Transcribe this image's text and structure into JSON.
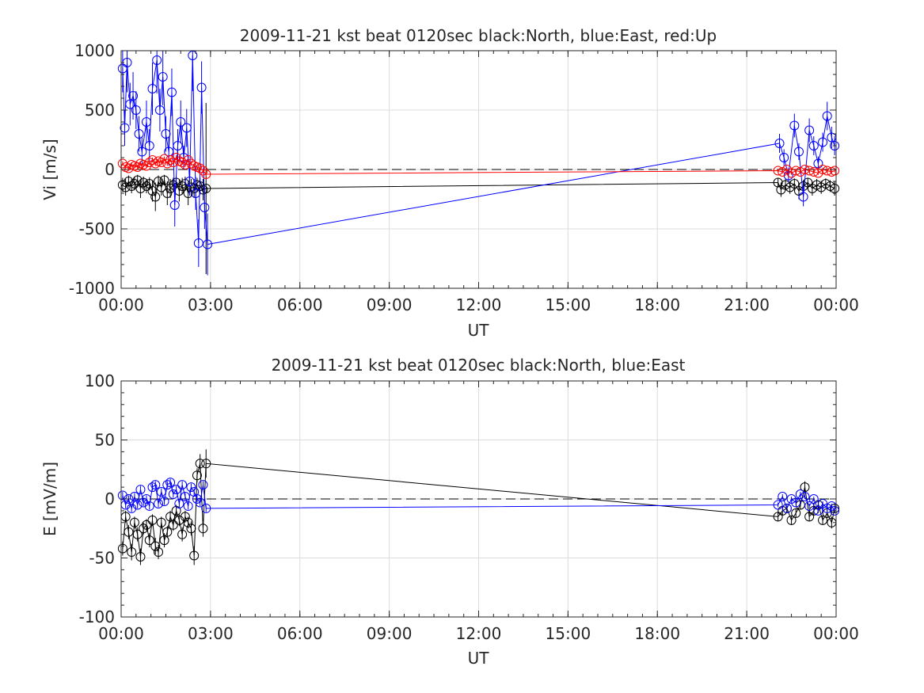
{
  "chart_data": [
    {
      "type": "scatter",
      "title": "2009-11-21 kst beat 0120sec black:North, blue:East, red:Up",
      "xlabel": "UT",
      "ylabel": "Vi [m/s]",
      "xlim": [
        0,
        24
      ],
      "ylim": [
        -1000,
        1000
      ],
      "xticks": [
        0,
        3,
        6,
        9,
        12,
        15,
        18,
        21,
        24
      ],
      "xticklabels": [
        "00:00",
        "03:00",
        "06:00",
        "09:00",
        "12:00",
        "15:00",
        "18:00",
        "21:00",
        "00:00"
      ],
      "yticks": [
        -1000,
        -500,
        0,
        500,
        1000
      ],
      "yticklabels": [
        "-1000",
        "-500",
        "0",
        "500",
        "1000"
      ],
      "grid": true,
      "zero_line": 0,
      "series": [
        {
          "name": "North",
          "color": "#000000",
          "x": [
            0.05,
            0.15,
            0.25,
            0.35,
            0.45,
            0.55,
            0.65,
            0.75,
            0.85,
            0.95,
            1.05,
            1.15,
            1.25,
            1.35,
            1.45,
            1.55,
            1.65,
            1.75,
            1.85,
            1.95,
            2.05,
            2.15,
            2.25,
            2.35,
            2.45,
            2.55,
            2.65,
            2.75,
            2.85,
            22.05,
            22.15,
            22.3,
            22.45,
            22.6,
            22.75,
            22.9,
            23.05,
            23.2,
            23.35,
            23.5,
            23.65,
            23.8,
            23.95
          ],
          "y": [
            -130,
            -150,
            -100,
            -140,
            -120,
            -90,
            -160,
            -110,
            -140,
            -120,
            -180,
            -230,
            -100,
            -150,
            -90,
            -200,
            -160,
            -130,
            -110,
            -180,
            -140,
            -120,
            -200,
            -150,
            -160,
            -130,
            -140,
            -170,
            -160,
            -110,
            -170,
            -130,
            -150,
            -120,
            -180,
            -140,
            -110,
            -160,
            -130,
            -150,
            -120,
            -140,
            -160
          ],
          "err": [
            60,
            70,
            50,
            60,
            55,
            45,
            80,
            50,
            60,
            55,
            90,
            120,
            50,
            70,
            45,
            100,
            80,
            60,
            50,
            90,
            70,
            60,
            100,
            70,
            80,
            60,
            70,
            90,
            720,
            40,
            60,
            50,
            55,
            45,
            70,
            50,
            40,
            60,
            50,
            55,
            45,
            50,
            60
          ]
        },
        {
          "name": "East",
          "color": "#0000ff",
          "x": [
            0.05,
            0.12,
            0.2,
            0.3,
            0.4,
            0.5,
            0.6,
            0.7,
            0.85,
            0.95,
            1.05,
            1.2,
            1.3,
            1.4,
            1.5,
            1.6,
            1.7,
            1.8,
            1.9,
            2.0,
            2.1,
            2.2,
            2.3,
            2.4,
            2.5,
            2.6,
            2.7,
            2.8,
            2.9,
            22.1,
            22.25,
            22.4,
            22.6,
            22.75,
            22.9,
            23.1,
            23.25,
            23.4,
            23.55,
            23.7,
            23.85,
            23.95
          ],
          "y": [
            850,
            350,
            900,
            550,
            620,
            500,
            300,
            150,
            400,
            200,
            680,
            920,
            500,
            780,
            300,
            150,
            650,
            -300,
            200,
            400,
            100,
            350,
            -100,
            960,
            -200,
            -620,
            690,
            -320,
            -630,
            220,
            100,
            -50,
            370,
            150,
            -230,
            330,
            200,
            50,
            230,
            450,
            270,
            200
          ],
          "err": [
            200,
            150,
            250,
            180,
            200,
            160,
            150,
            120,
            180,
            140,
            220,
            280,
            180,
            240,
            150,
            120,
            200,
            180,
            140,
            180,
            100,
            160,
            120,
            300,
            140,
            200,
            220,
            180,
            260,
            80,
            70,
            60,
            100,
            70,
            80,
            100,
            80,
            60,
            80,
            120,
            90,
            80
          ]
        },
        {
          "name": "Up",
          "color": "#ff0000",
          "x": [
            0.05,
            0.15,
            0.25,
            0.35,
            0.45,
            0.55,
            0.65,
            0.75,
            0.85,
            0.95,
            1.05,
            1.15,
            1.25,
            1.35,
            1.45,
            1.55,
            1.65,
            1.75,
            1.85,
            1.95,
            2.05,
            2.15,
            2.25,
            2.35,
            2.45,
            2.55,
            2.65,
            2.75,
            2.85,
            22.05,
            22.2,
            22.35,
            22.5,
            22.65,
            22.8,
            22.95,
            23.1,
            23.25,
            23.4,
            23.55,
            23.7,
            23.85,
            23.95
          ],
          "y": [
            50,
            20,
            10,
            40,
            30,
            20,
            50,
            40,
            30,
            60,
            80,
            50,
            70,
            60,
            90,
            50,
            80,
            60,
            100,
            70,
            60,
            40,
            80,
            50,
            30,
            20,
            10,
            -10,
            -40,
            -10,
            -20,
            0,
            -30,
            -10,
            -20,
            0,
            -10,
            -20,
            -30,
            0,
            -10,
            -20,
            -10
          ],
          "err": [
            20,
            20,
            20,
            20,
            20,
            20,
            20,
            20,
            20,
            20,
            20,
            20,
            20,
            20,
            20,
            20,
            20,
            20,
            20,
            20,
            20,
            20,
            20,
            20,
            20,
            20,
            20,
            20,
            20,
            15,
            15,
            15,
            15,
            15,
            15,
            15,
            15,
            15,
            15,
            15,
            15,
            15,
            15
          ]
        }
      ]
    },
    {
      "type": "scatter",
      "title": "2009-11-21 kst beat 0120sec black:North, blue:East",
      "xlabel": "UT",
      "ylabel": "E [mV/m]",
      "xlim": [
        0,
        24
      ],
      "ylim": [
        -100,
        100
      ],
      "xticks": [
        0,
        3,
        6,
        9,
        12,
        15,
        18,
        21,
        24
      ],
      "xticklabels": [
        "00:00",
        "03:00",
        "06:00",
        "09:00",
        "12:00",
        "15:00",
        "18:00",
        "21:00",
        "00:00"
      ],
      "yticks": [
        -100,
        -50,
        0,
        50,
        100
      ],
      "yticklabels": [
        "-100",
        "-50",
        "0",
        "50",
        "100"
      ],
      "grid": true,
      "zero_line": 0,
      "series": [
        {
          "name": "North",
          "color": "#000000",
          "x": [
            0.05,
            0.15,
            0.25,
            0.35,
            0.45,
            0.55,
            0.65,
            0.75,
            0.85,
            0.95,
            1.05,
            1.15,
            1.25,
            1.35,
            1.45,
            1.55,
            1.65,
            1.75,
            1.85,
            1.95,
            2.05,
            2.15,
            2.25,
            2.35,
            2.45,
            2.55,
            2.65,
            2.75,
            2.85,
            22.05,
            22.2,
            22.35,
            22.5,
            22.65,
            22.8,
            22.95,
            23.1,
            23.25,
            23.4,
            23.55,
            23.7,
            23.85,
            23.95
          ],
          "y": [
            -42,
            -15,
            -28,
            -45,
            -20,
            -30,
            -49,
            -25,
            -22,
            -35,
            -18,
            -40,
            -45,
            -20,
            -35,
            -28,
            -15,
            -22,
            -10,
            -18,
            -30,
            -15,
            -20,
            -25,
            -48,
            20,
            30,
            -25,
            30,
            -15,
            -10,
            -8,
            -18,
            -12,
            -5,
            10,
            -15,
            -10,
            -5,
            -18,
            -12,
            -20,
            -8
          ],
          "err": [
            6,
            5,
            6,
            7,
            5,
            6,
            7,
            5,
            5,
            6,
            5,
            7,
            6,
            5,
            6,
            5,
            5,
            5,
            5,
            5,
            6,
            5,
            5,
            6,
            8,
            6,
            8,
            7,
            12,
            4,
            4,
            4,
            4,
            4,
            4,
            5,
            4,
            4,
            4,
            4,
            4,
            5,
            4
          ]
        },
        {
          "name": "East",
          "color": "#0000ff",
          "x": [
            0.05,
            0.15,
            0.25,
            0.35,
            0.45,
            0.55,
            0.65,
            0.75,
            0.85,
            0.95,
            1.05,
            1.15,
            1.25,
            1.35,
            1.45,
            1.55,
            1.65,
            1.75,
            1.85,
            1.95,
            2.05,
            2.15,
            2.25,
            2.35,
            2.45,
            2.55,
            2.65,
            2.75,
            2.85,
            22.05,
            22.2,
            22.35,
            22.5,
            22.65,
            22.8,
            22.95,
            23.1,
            23.25,
            23.4,
            23.55,
            23.7,
            23.85,
            23.95
          ],
          "y": [
            3,
            -5,
            0,
            -8,
            2,
            -5,
            8,
            -3,
            0,
            -6,
            10,
            12,
            -4,
            6,
            -2,
            12,
            14,
            4,
            8,
            -4,
            12,
            2,
            -6,
            10,
            6,
            0,
            -3,
            12,
            -8,
            -5,
            2,
            -8,
            0,
            -3,
            4,
            2,
            -6,
            0,
            -10,
            -4,
            -8,
            -6,
            -10
          ],
          "err": [
            3,
            3,
            3,
            3,
            3,
            3,
            3,
            3,
            3,
            3,
            3,
            3,
            3,
            3,
            3,
            3,
            3,
            3,
            3,
            3,
            3,
            3,
            3,
            3,
            3,
            3,
            3,
            3,
            3,
            2,
            2,
            2,
            2,
            2,
            2,
            2,
            2,
            2,
            2,
            2,
            2,
            2,
            2
          ]
        }
      ]
    }
  ]
}
